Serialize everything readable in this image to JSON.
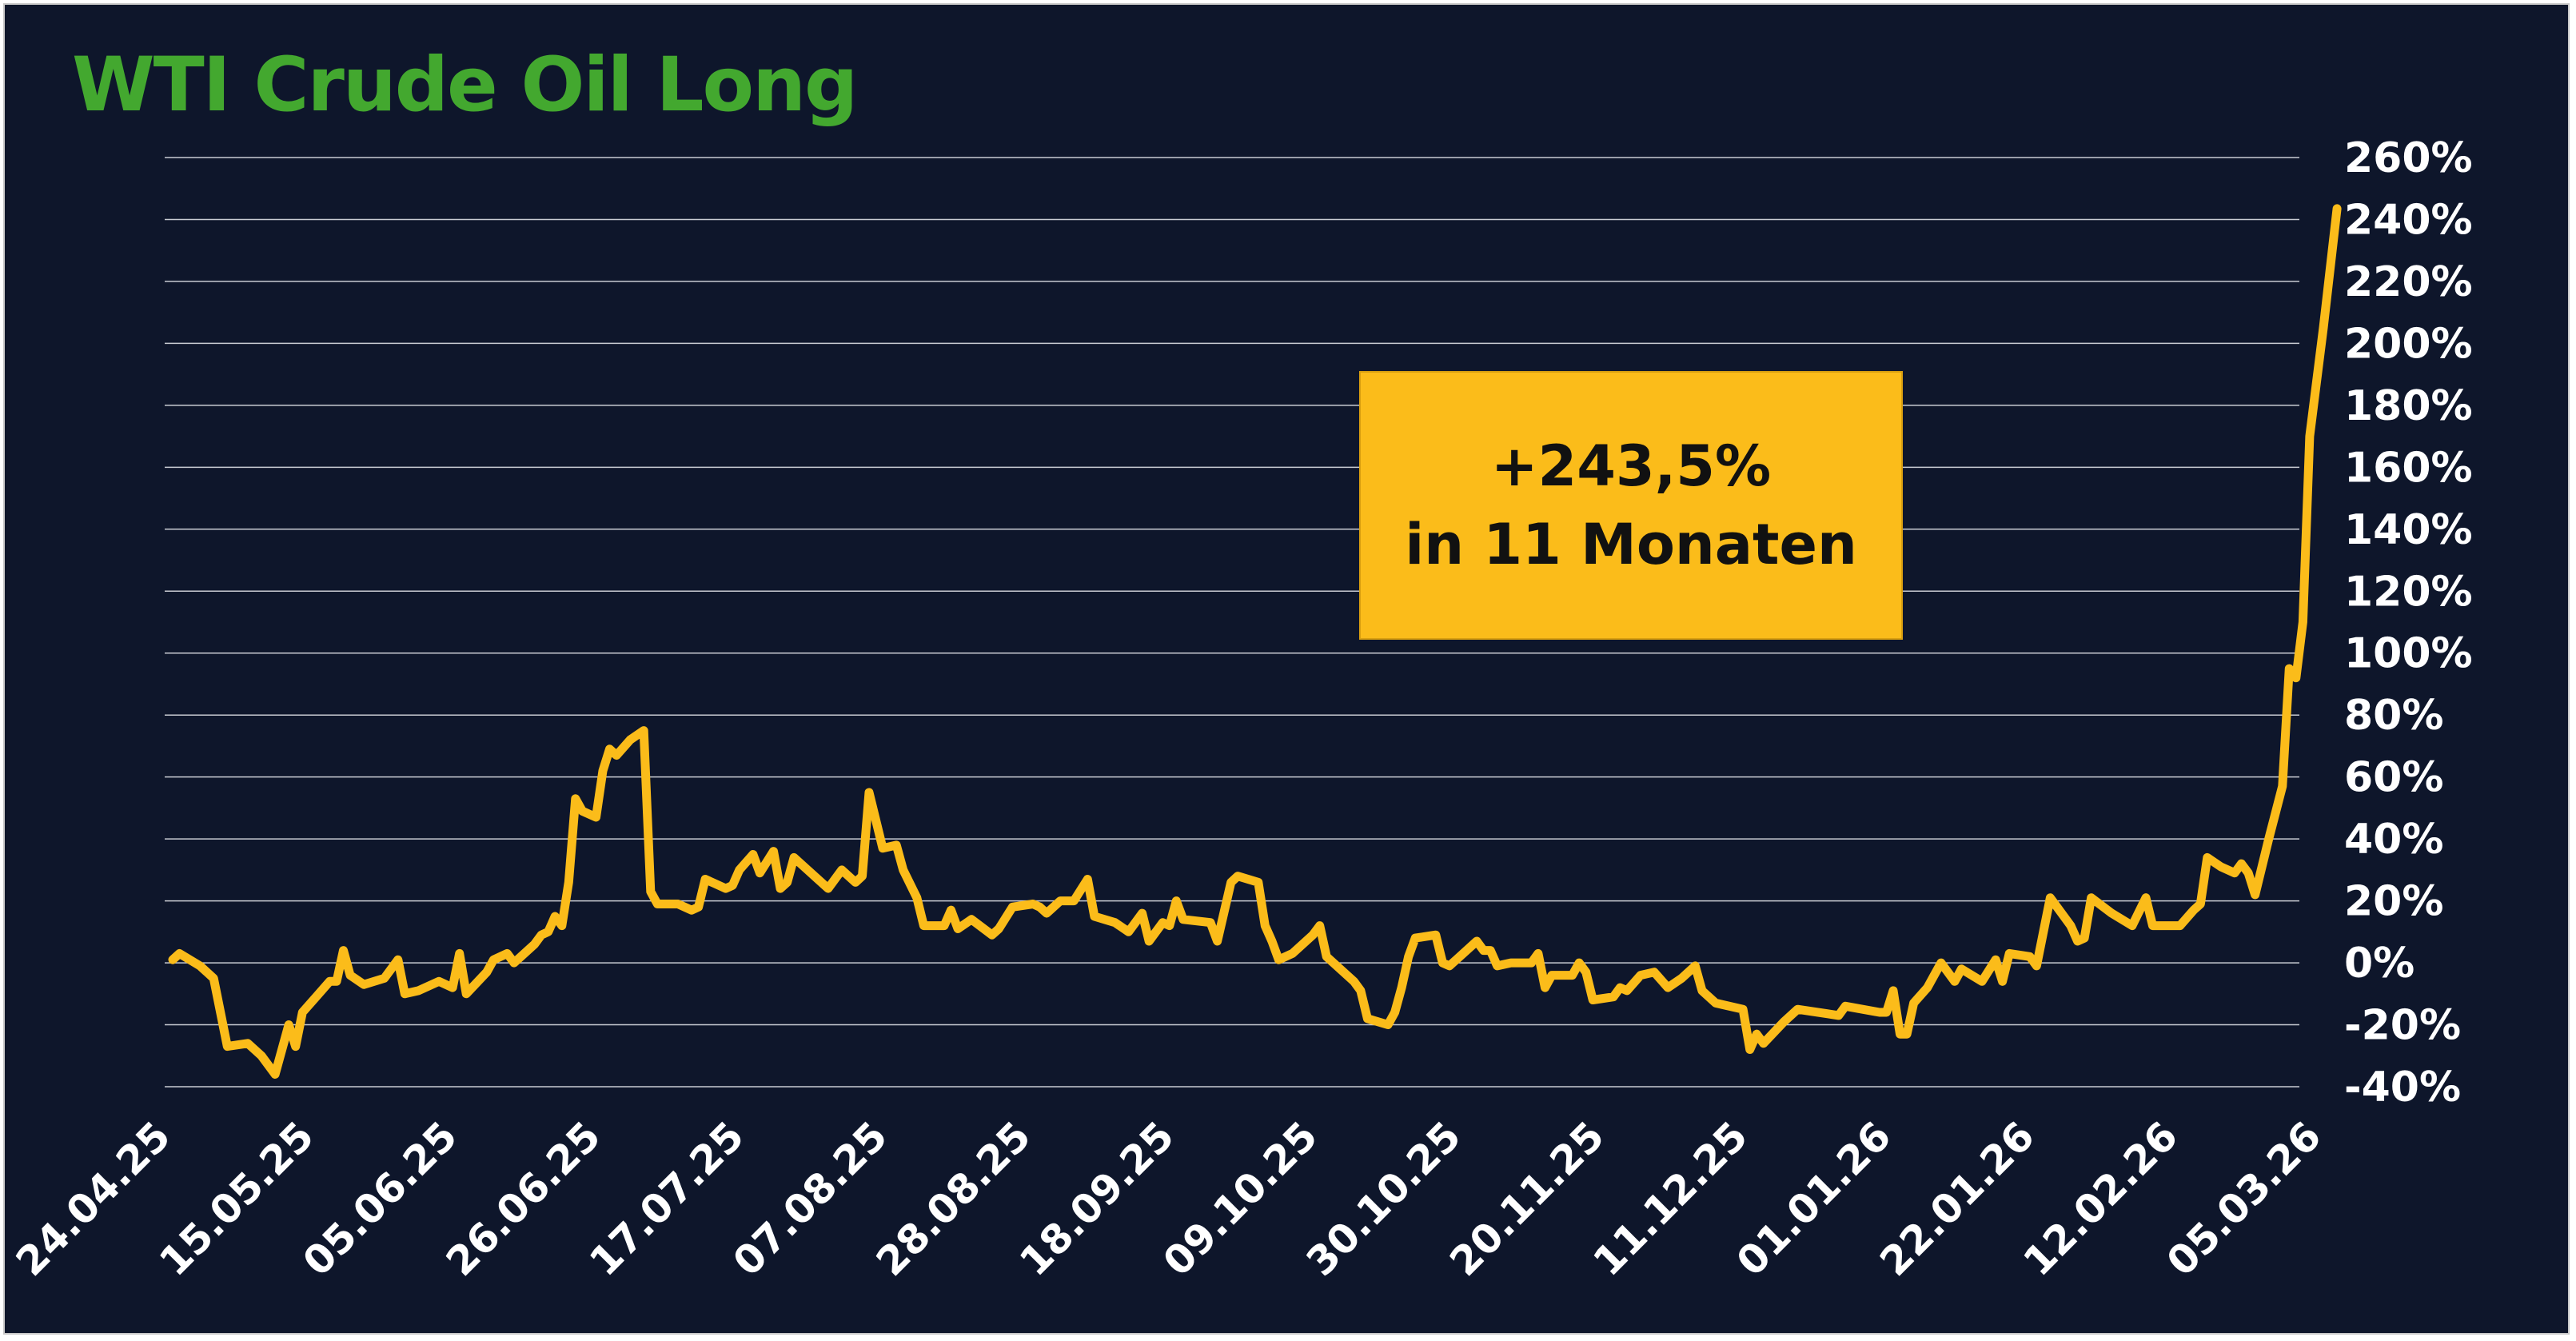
{
  "title": "WTI Crude Oil Long",
  "annotation": {
    "line1": "+243,5%",
    "line2": "in 11 Monaten"
  },
  "colors": {
    "background": "#0e162b",
    "title": "#43a82f",
    "line": "#fbbc1a",
    "annotation_bg": "#fbbc1a",
    "grid": "#c9ccd3",
    "text": "#ffffff"
  },
  "chart_data": {
    "type": "line",
    "title": "WTI Crude Oil Long",
    "ylim": [
      -40,
      260
    ],
    "y_ticks": [
      260,
      240,
      220,
      200,
      180,
      160,
      140,
      120,
      100,
      80,
      60,
      40,
      20,
      0,
      -20,
      -40
    ],
    "y_tick_labels": [
      "260%",
      "240%",
      "220%",
      "200%",
      "180%",
      "160%",
      "140%",
      "120%",
      "100%",
      "80%",
      "60%",
      "40%",
      "20%",
      "0%",
      "-20%",
      "-40%"
    ],
    "y_axis_position": "right",
    "x_tick_labels": [
      "24.04.25",
      "15.05.25",
      "05.06.25",
      "26.06.25",
      "17.07.25",
      "07.08.25",
      "28.08.25",
      "18.09.25",
      "09.10.25",
      "30.10.25",
      "20.11.25",
      "11.12.25",
      "01.01.26",
      "22.01.26",
      "12.02.26",
      "05.03.26"
    ],
    "grid": true,
    "x_start": "24.04.25",
    "x_end": "10.03.26",
    "series": [
      {
        "values": [
          [
            "24.04.25",
            1
          ],
          [
            "25.04.25",
            3
          ],
          [
            "28.04.25",
            -1
          ],
          [
            "30.04.25",
            -5
          ],
          [
            "02.05.25",
            -27
          ],
          [
            "05.05.25",
            -26
          ],
          [
            "07.05.25",
            -30
          ],
          [
            "09.05.25",
            -36
          ],
          [
            "11.05.25",
            -20
          ],
          [
            "12.05.25",
            -27
          ],
          [
            "13.05.25",
            -16
          ],
          [
            "15.05.25",
            -11
          ],
          [
            "17.05.25",
            -6
          ],
          [
            "18.05.25",
            -6
          ],
          [
            "19.05.25",
            4
          ],
          [
            "20.05.25",
            -4
          ],
          [
            "22.05.25",
            -7
          ],
          [
            "25.05.25",
            -5
          ],
          [
            "27.05.25",
            1
          ],
          [
            "28.05.25",
            -10
          ],
          [
            "30.05.25",
            -9
          ],
          [
            "02.06.25",
            -6
          ],
          [
            "04.06.25",
            -8
          ],
          [
            "05.06.25",
            3
          ],
          [
            "06.06.25",
            -10
          ],
          [
            "09.06.25",
            -3
          ],
          [
            "10.06.25",
            1
          ],
          [
            "12.06.25",
            3
          ],
          [
            "13.06.25",
            0
          ],
          [
            "16.06.25",
            6
          ],
          [
            "17.06.25",
            9
          ],
          [
            "18.06.25",
            10
          ],
          [
            "19.06.25",
            15
          ],
          [
            "20.06.25",
            12
          ],
          [
            "21.06.25",
            26
          ],
          [
            "22.06.25",
            53
          ],
          [
            "23.06.25",
            49
          ],
          [
            "25.06.25",
            47
          ],
          [
            "26.06.25",
            62
          ],
          [
            "27.06.25",
            69
          ],
          [
            "28.06.25",
            67
          ],
          [
            "30.06.25",
            72
          ],
          [
            "02.07.25",
            75
          ],
          [
            "03.07.25",
            23
          ],
          [
            "04.07.25",
            19
          ],
          [
            "07.07.25",
            19
          ],
          [
            "09.07.25",
            17
          ],
          [
            "10.07.25",
            18
          ],
          [
            "11.07.25",
            27
          ],
          [
            "14.07.25",
            24
          ],
          [
            "15.07.25",
            25
          ],
          [
            "16.07.25",
            30
          ],
          [
            "18.07.25",
            35
          ],
          [
            "19.07.25",
            29
          ],
          [
            "21.07.25",
            36
          ],
          [
            "22.07.25",
            24
          ],
          [
            "23.07.25",
            26
          ],
          [
            "24.07.25",
            34
          ],
          [
            "26.07.25",
            30
          ],
          [
            "29.07.25",
            24
          ],
          [
            "31.07.25",
            30
          ],
          [
            "02.08.25",
            26
          ],
          [
            "03.08.25",
            28
          ],
          [
            "04.08.25",
            55
          ],
          [
            "06.08.25",
            37
          ],
          [
            "08.08.25",
            38
          ],
          [
            "09.08.25",
            30
          ],
          [
            "11.08.25",
            21
          ],
          [
            "12.08.25",
            12
          ],
          [
            "15.08.25",
            12
          ],
          [
            "16.08.25",
            17
          ],
          [
            "17.08.25",
            11
          ],
          [
            "19.08.25",
            14
          ],
          [
            "22.08.25",
            9
          ],
          [
            "23.08.25",
            11
          ],
          [
            "25.08.25",
            18
          ],
          [
            "28.08.25",
            19
          ],
          [
            "29.08.25",
            18
          ],
          [
            "30.08.25",
            16
          ],
          [
            "01.09.25",
            20
          ],
          [
            "03.09.25",
            20
          ],
          [
            "05.09.25",
            27
          ],
          [
            "06.09.25",
            15
          ],
          [
            "09.09.25",
            13
          ],
          [
            "11.09.25",
            10
          ],
          [
            "13.09.25",
            16
          ],
          [
            "14.09.25",
            7
          ],
          [
            "16.09.25",
            13
          ],
          [
            "17.09.25",
            12
          ],
          [
            "18.09.25",
            20
          ],
          [
            "19.09.25",
            14
          ],
          [
            "23.09.25",
            13
          ],
          [
            "24.09.25",
            7
          ],
          [
            "26.09.25",
            26
          ],
          [
            "27.09.25",
            28
          ],
          [
            "30.09.25",
            26
          ],
          [
            "01.10.25",
            12
          ],
          [
            "02.10.25",
            7
          ],
          [
            "03.10.25",
            1
          ],
          [
            "05.10.25",
            3
          ],
          [
            "08.10.25",
            9
          ],
          [
            "09.10.25",
            12
          ],
          [
            "10.10.25",
            2
          ],
          [
            "12.10.25",
            -2
          ],
          [
            "14.10.25",
            -6
          ],
          [
            "15.10.25",
            -9
          ],
          [
            "16.10.25",
            -18
          ],
          [
            "19.10.25",
            -20
          ],
          [
            "20.10.25",
            -16
          ],
          [
            "21.10.25",
            -8
          ],
          [
            "22.10.25",
            2
          ],
          [
            "23.10.25",
            8
          ],
          [
            "26.10.25",
            9
          ],
          [
            "27.10.25",
            0
          ],
          [
            "28.10.25",
            -1
          ],
          [
            "29.10.25",
            1
          ],
          [
            "01.11.25",
            7
          ],
          [
            "02.11.25",
            4
          ],
          [
            "03.11.25",
            4
          ],
          [
            "04.11.25",
            -1
          ],
          [
            "06.11.25",
            0
          ],
          [
            "09.11.25",
            0
          ],
          [
            "10.11.25",
            3
          ],
          [
            "11.11.25",
            -8
          ],
          [
            "12.11.25",
            -4
          ],
          [
            "15.11.25",
            -4
          ],
          [
            "16.11.25",
            0
          ],
          [
            "17.11.25",
            -3
          ],
          [
            "18.11.25",
            -12
          ],
          [
            "21.11.25",
            -11
          ],
          [
            "22.11.25",
            -8
          ],
          [
            "23.11.25",
            -9
          ],
          [
            "25.11.25",
            -4
          ],
          [
            "27.11.25",
            -3
          ],
          [
            "29.11.25",
            -8
          ],
          [
            "01.12.25",
            -5
          ],
          [
            "03.12.25",
            -1
          ],
          [
            "04.12.25",
            -9
          ],
          [
            "06.12.25",
            -13
          ],
          [
            "10.12.25",
            -15
          ],
          [
            "11.12.25",
            -28
          ],
          [
            "12.12.25",
            -23
          ],
          [
            "13.12.25",
            -26
          ],
          [
            "16.12.25",
            -19
          ],
          [
            "18.12.25",
            -15
          ],
          [
            "24.12.25",
            -17
          ],
          [
            "25.12.25",
            -14
          ],
          [
            "30.12.25",
            -16
          ],
          [
            "31.12.25",
            -16
          ],
          [
            "01.01.26",
            -9
          ],
          [
            "02.01.26",
            -23
          ],
          [
            "03.01.26",
            -23
          ],
          [
            "04.01.26",
            -13
          ],
          [
            "06.01.26",
            -8
          ],
          [
            "08.01.26",
            0
          ],
          [
            "10.01.26",
            -6
          ],
          [
            "11.01.26",
            -2
          ],
          [
            "14.01.26",
            -6
          ],
          [
            "16.01.26",
            1
          ],
          [
            "17.01.26",
            -6
          ],
          [
            "18.01.26",
            3
          ],
          [
            "21.01.26",
            2
          ],
          [
            "22.01.26",
            -1
          ],
          [
            "24.01.26",
            21
          ],
          [
            "26.01.26",
            15
          ],
          [
            "27.01.26",
            12
          ],
          [
            "28.01.26",
            7
          ],
          [
            "29.01.26",
            8
          ],
          [
            "30.01.26",
            21
          ],
          [
            "02.02.26",
            16
          ],
          [
            "05.02.26",
            12
          ],
          [
            "07.02.26",
            21
          ],
          [
            "08.02.26",
            12
          ],
          [
            "12.02.26",
            12
          ],
          [
            "14.02.26",
            17
          ],
          [
            "15.02.26",
            19
          ],
          [
            "16.02.26",
            34
          ],
          [
            "18.02.26",
            31
          ],
          [
            "20.02.26",
            29
          ],
          [
            "21.02.26",
            32
          ],
          [
            "22.02.26",
            29
          ],
          [
            "23.02.26",
            22
          ],
          [
            "25.02.26",
            40
          ],
          [
            "27.02.26",
            57
          ],
          [
            "28.02.26",
            95
          ],
          [
            "01.03.26",
            92
          ],
          [
            "02.03.26",
            110
          ],
          [
            "03.03.26",
            170
          ],
          [
            "05.03.26",
            205
          ],
          [
            "07.03.26",
            243.5
          ]
        ]
      }
    ]
  }
}
